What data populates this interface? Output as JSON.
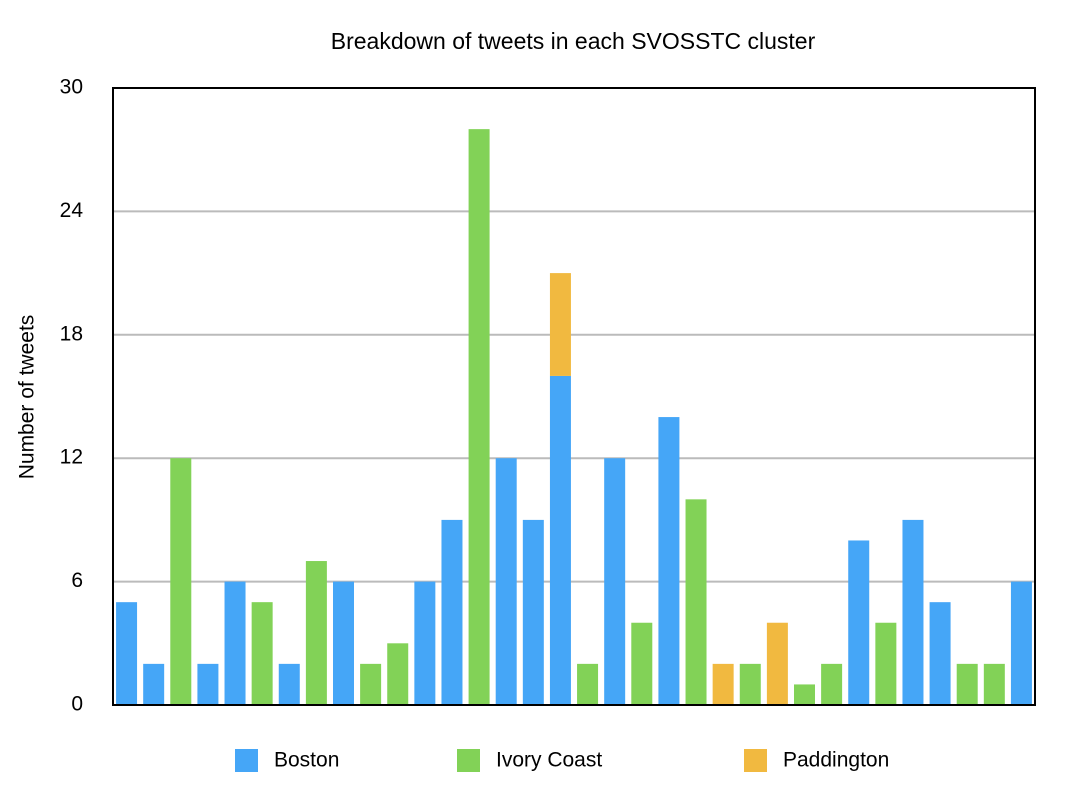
{
  "chart_data": {
    "type": "stacked_bar",
    "title": "Breakdown of tweets in each SVOSSTC cluster",
    "y_label": "Number of tweets",
    "categories": [
      null,
      null,
      null,
      null,
      null,
      null,
      null,
      null,
      null,
      null,
      null,
      null,
      null,
      null,
      null,
      null,
      null,
      null,
      null,
      null,
      null,
      null,
      null,
      null,
      null,
      null,
      null,
      null,
      null,
      null,
      null,
      null,
      null,
      null
    ],
    "series": [
      {
        "name": "Boston",
        "color": "#45a6f7",
        "values": [
          5,
          2,
          0,
          2,
          6,
          0,
          2,
          0,
          6,
          0,
          0,
          6,
          9,
          0,
          12,
          9,
          16,
          0,
          12,
          0,
          14,
          0,
          0,
          0,
          0,
          0,
          0,
          8,
          0,
          9,
          5,
          0,
          0,
          6
        ]
      },
      {
        "name": "Ivory Coast",
        "color": "#82d257",
        "values": [
          0,
          0,
          12,
          0,
          0,
          5,
          0,
          7,
          0,
          2,
          3,
          0,
          0,
          28,
          0,
          0,
          0,
          2,
          0,
          4,
          0,
          10,
          0,
          2,
          0,
          1,
          2,
          0,
          4,
          0,
          0,
          2,
          2,
          0
        ]
      },
      {
        "name": "Paddington",
        "color": "#f1b940",
        "values": [
          0,
          0,
          0,
          0,
          0,
          0,
          0,
          0,
          0,
          0,
          0,
          0,
          0,
          0,
          0,
          0,
          5,
          0,
          0,
          0,
          0,
          0,
          2,
          0,
          4,
          0,
          0,
          0,
          0,
          0,
          0,
          0,
          0,
          0
        ]
      }
    ],
    "ylim": [
      0,
      30
    ],
    "yticks": [
      0,
      6,
      12,
      18,
      24,
      30
    ],
    "grid": true,
    "legend": "bottom"
  }
}
